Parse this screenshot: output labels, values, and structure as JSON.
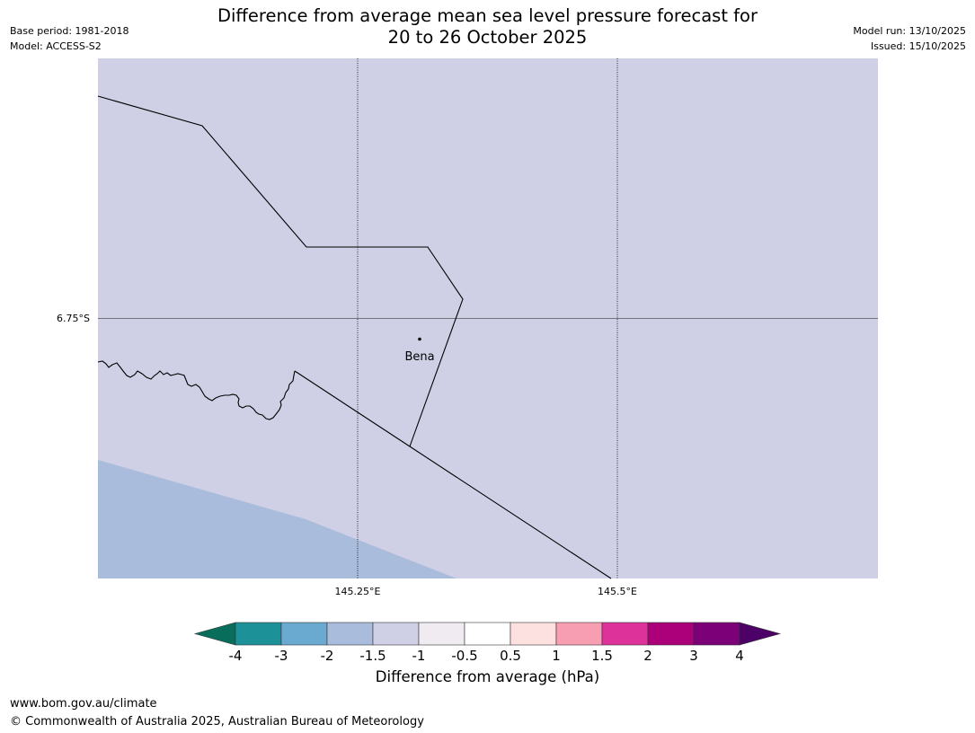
{
  "header": {
    "title_line1": "Difference from average mean sea level pressure forecast for",
    "title_line2": "20 to 26 October 2025",
    "base_period": "Base period: 1981-2018",
    "model": "Model: ACCESS-S2",
    "model_run": "Model run: 13/10/2025",
    "issued": "Issued: 15/10/2025"
  },
  "map": {
    "lat_label": "6.75°S",
    "lon_labels": [
      "145.25°E",
      "145.5°E"
    ],
    "place_label": "Bena",
    "colors": {
      "main_fill": "#cfd0e6",
      "lower_fill": "#a9bcdc",
      "gridline": "#000000",
      "boundary": "#000000"
    }
  },
  "colorbar": {
    "title": "Difference from average (hPa)",
    "tick_labels": [
      "-4",
      "-3",
      "-2",
      "-1.5",
      "-1",
      "-0.5",
      "0.5",
      "1",
      "1.5",
      "2",
      "3",
      "4"
    ],
    "colors": [
      "#086e5b",
      "#1c9298",
      "#6aaad1",
      "#a9bcdc",
      "#cfd0e6",
      "#f0ebf0",
      "#ffffff",
      "#fde0e0",
      "#f89eb3",
      "#dc3299",
      "#ab0079",
      "#7c0077",
      "#4c0068"
    ]
  },
  "footer": {
    "url": "www.bom.gov.au/climate",
    "copyright": "© Commonwealth of Australia 2025, Australian Bureau of Meteorology"
  }
}
